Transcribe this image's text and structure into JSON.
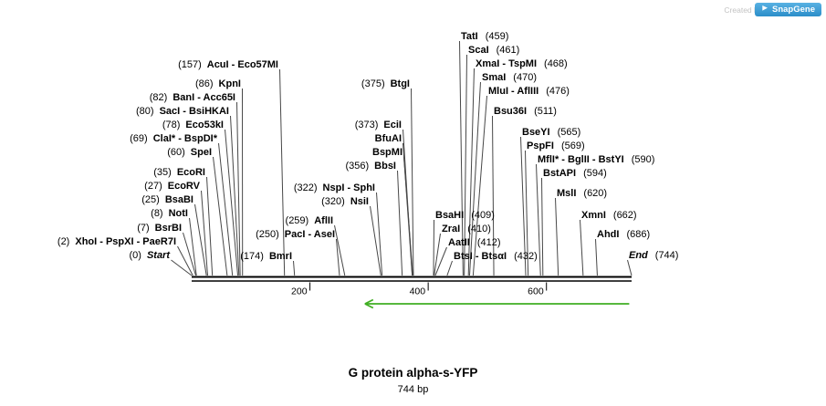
{
  "branding": {
    "created_by": "Created by",
    "logo_text": "SnapGene"
  },
  "footer": {
    "title": "G protein alpha-s-YFP",
    "length": "744 bp"
  },
  "map": {
    "length_bp": 744,
    "ticks": [
      {
        "bp": 200,
        "label": "200"
      },
      {
        "bp": 400,
        "label": "400"
      },
      {
        "bp": 600,
        "label": "600"
      }
    ],
    "arrow": {
      "tip_bp": 293,
      "tail_bp": 740,
      "direction": "left",
      "color": "#3fae22"
    },
    "labels": [
      {
        "pos": "(157)",
        "name": "AcuI - Eco57MI",
        "bp": 157
      },
      {
        "pos": "(86)",
        "name": "KpnI",
        "bp": 86
      },
      {
        "pos": "(82)",
        "name": "BanI - Acc65I",
        "bp": 82
      },
      {
        "pos": "(80)",
        "name": "SacI - BsiHKAI",
        "bp": 80
      },
      {
        "pos": "(78)",
        "name": "Eco53kI",
        "bp": 78
      },
      {
        "pos": "(69)",
        "name": "ClaI* - BspDI*",
        "bp": 69
      },
      {
        "pos": "(60)",
        "name": "SpeI",
        "bp": 60
      },
      {
        "pos": "(35)",
        "name": "EcoRI",
        "bp": 35
      },
      {
        "pos": "(27)",
        "name": "EcoRV",
        "bp": 27
      },
      {
        "pos": "(25)",
        "name": "BsaBI",
        "bp": 25
      },
      {
        "pos": "(8)",
        "name": "NotI",
        "bp": 8
      },
      {
        "pos": "(7)",
        "name": "BsrBI",
        "bp": 7
      },
      {
        "pos": "(2)",
        "name": "XhoI - PspXI - PaeR7I",
        "bp": 2
      },
      {
        "pos": "(0)",
        "name": "Start",
        "bp": 0
      },
      {
        "pos": "(375)",
        "name": "BtgI",
        "bp": 375
      },
      {
        "pos": "(373)",
        "name": "EciI",
        "bp": 373
      },
      {
        "pos": "",
        "name": "BfuAI",
        "bp": 373
      },
      {
        "pos": "",
        "name": "BspMI",
        "bp": 374
      },
      {
        "pos": "(356)",
        "name": "BbsI",
        "bp": 356
      },
      {
        "pos": "(322)",
        "name": "NspI - SphI",
        "bp": 322
      },
      {
        "pos": "(320)",
        "name": "NsiI",
        "bp": 320
      },
      {
        "pos": "(259)",
        "name": "AflII",
        "bp": 259
      },
      {
        "pos": "(250)",
        "name": "PacI - AseI",
        "bp": 250
      },
      {
        "pos": "(174)",
        "name": "BmrI",
        "bp": 174
      },
      {
        "pos": "(409)",
        "name": "BsaHI",
        "bp": 409
      },
      {
        "pos": "(410)",
        "name": "ZraI",
        "bp": 410
      },
      {
        "pos": "(412)",
        "name": "AatII",
        "bp": 412
      },
      {
        "pos": "(432)",
        "name": "BtsI - BtsαI",
        "bp": 432
      },
      {
        "pos": "(459)",
        "name": "TatI",
        "bp": 459
      },
      {
        "pos": "(461)",
        "name": "ScaI",
        "bp": 461
      },
      {
        "pos": "(468)",
        "name": "XmaI - TspMI",
        "bp": 468
      },
      {
        "pos": "(470)",
        "name": "SmaI",
        "bp": 470
      },
      {
        "pos": "(476)",
        "name": "MluI - AflIII",
        "bp": 476
      },
      {
        "pos": "(511)",
        "name": "Bsu36I",
        "bp": 511
      },
      {
        "pos": "(565)",
        "name": "BseYI",
        "bp": 565
      },
      {
        "pos": "(569)",
        "name": "PspFI",
        "bp": 569
      },
      {
        "pos": "(590)",
        "name": "MflI* - BglII - BstYI",
        "bp": 590
      },
      {
        "pos": "(594)",
        "name": "BstAPI",
        "bp": 594
      },
      {
        "pos": "(620)",
        "name": "MslI",
        "bp": 620
      },
      {
        "pos": "(662)",
        "name": "XmnI",
        "bp": 662
      },
      {
        "pos": "(686)",
        "name": "AhdI",
        "bp": 686
      },
      {
        "pos": "(744)",
        "name": "End",
        "bp": 744
      }
    ]
  }
}
